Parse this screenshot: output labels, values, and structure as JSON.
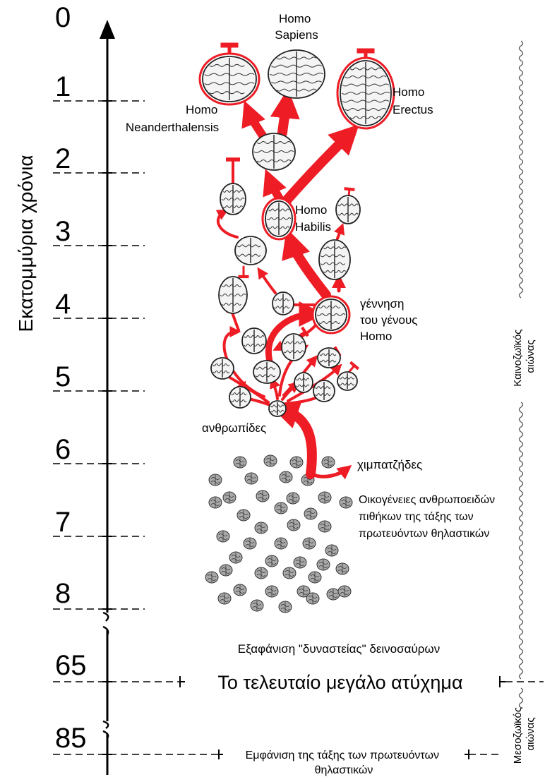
{
  "axis": {
    "title": "Εκατομμύρια χρόνια",
    "ticks": [
      {
        "label": "0"
      },
      {
        "label": "1"
      },
      {
        "label": "2"
      },
      {
        "label": "3"
      },
      {
        "label": "4"
      },
      {
        "label": "5"
      },
      {
        "label": "6"
      },
      {
        "label": "7"
      },
      {
        "label": "8"
      },
      {
        "label": "65"
      },
      {
        "label": "85"
      }
    ]
  },
  "labels": {
    "homo_sapiens": [
      "Homo",
      "Sapiens"
    ],
    "homo_erectus": [
      "Homo",
      "Erectus"
    ],
    "homo_neanderthalensis": [
      "Homo",
      "Neanderthalensis"
    ],
    "homo_habilis": [
      "Homo",
      "Habilis"
    ],
    "homo_genus_birth": [
      "γέννηση",
      "του γένους",
      "Homo"
    ],
    "hominids": "ανθρωπίδες",
    "chimpanzees": "χιμπατζήδες",
    "ape_families": [
      "Οικογένειες ανθρωποειδών",
      "πιθήκων της τάξης των",
      "πρωτευόντων θηλαστικών"
    ]
  },
  "events": {
    "dinosaur_extinction": "Εξαφάνιση \"δυναστείας\" δεινοσαύρων",
    "last_great_accident": "Το τελευταίο μεγάλο ατύχημα",
    "primates_appearance": [
      "Εμφάνιση της τάξης των πρωτευόντων",
      "θηλαστικών"
    ]
  },
  "eras": {
    "cenozoic": [
      "Καινοζωϊκός",
      "αιώνας"
    ],
    "mesozoic": [
      "Μεσοζωϊκός",
      "αιώνας"
    ]
  },
  "colors": {
    "branch": "#ee1c25",
    "axis": "#000000",
    "grey_brain": "#a8a8a8"
  }
}
